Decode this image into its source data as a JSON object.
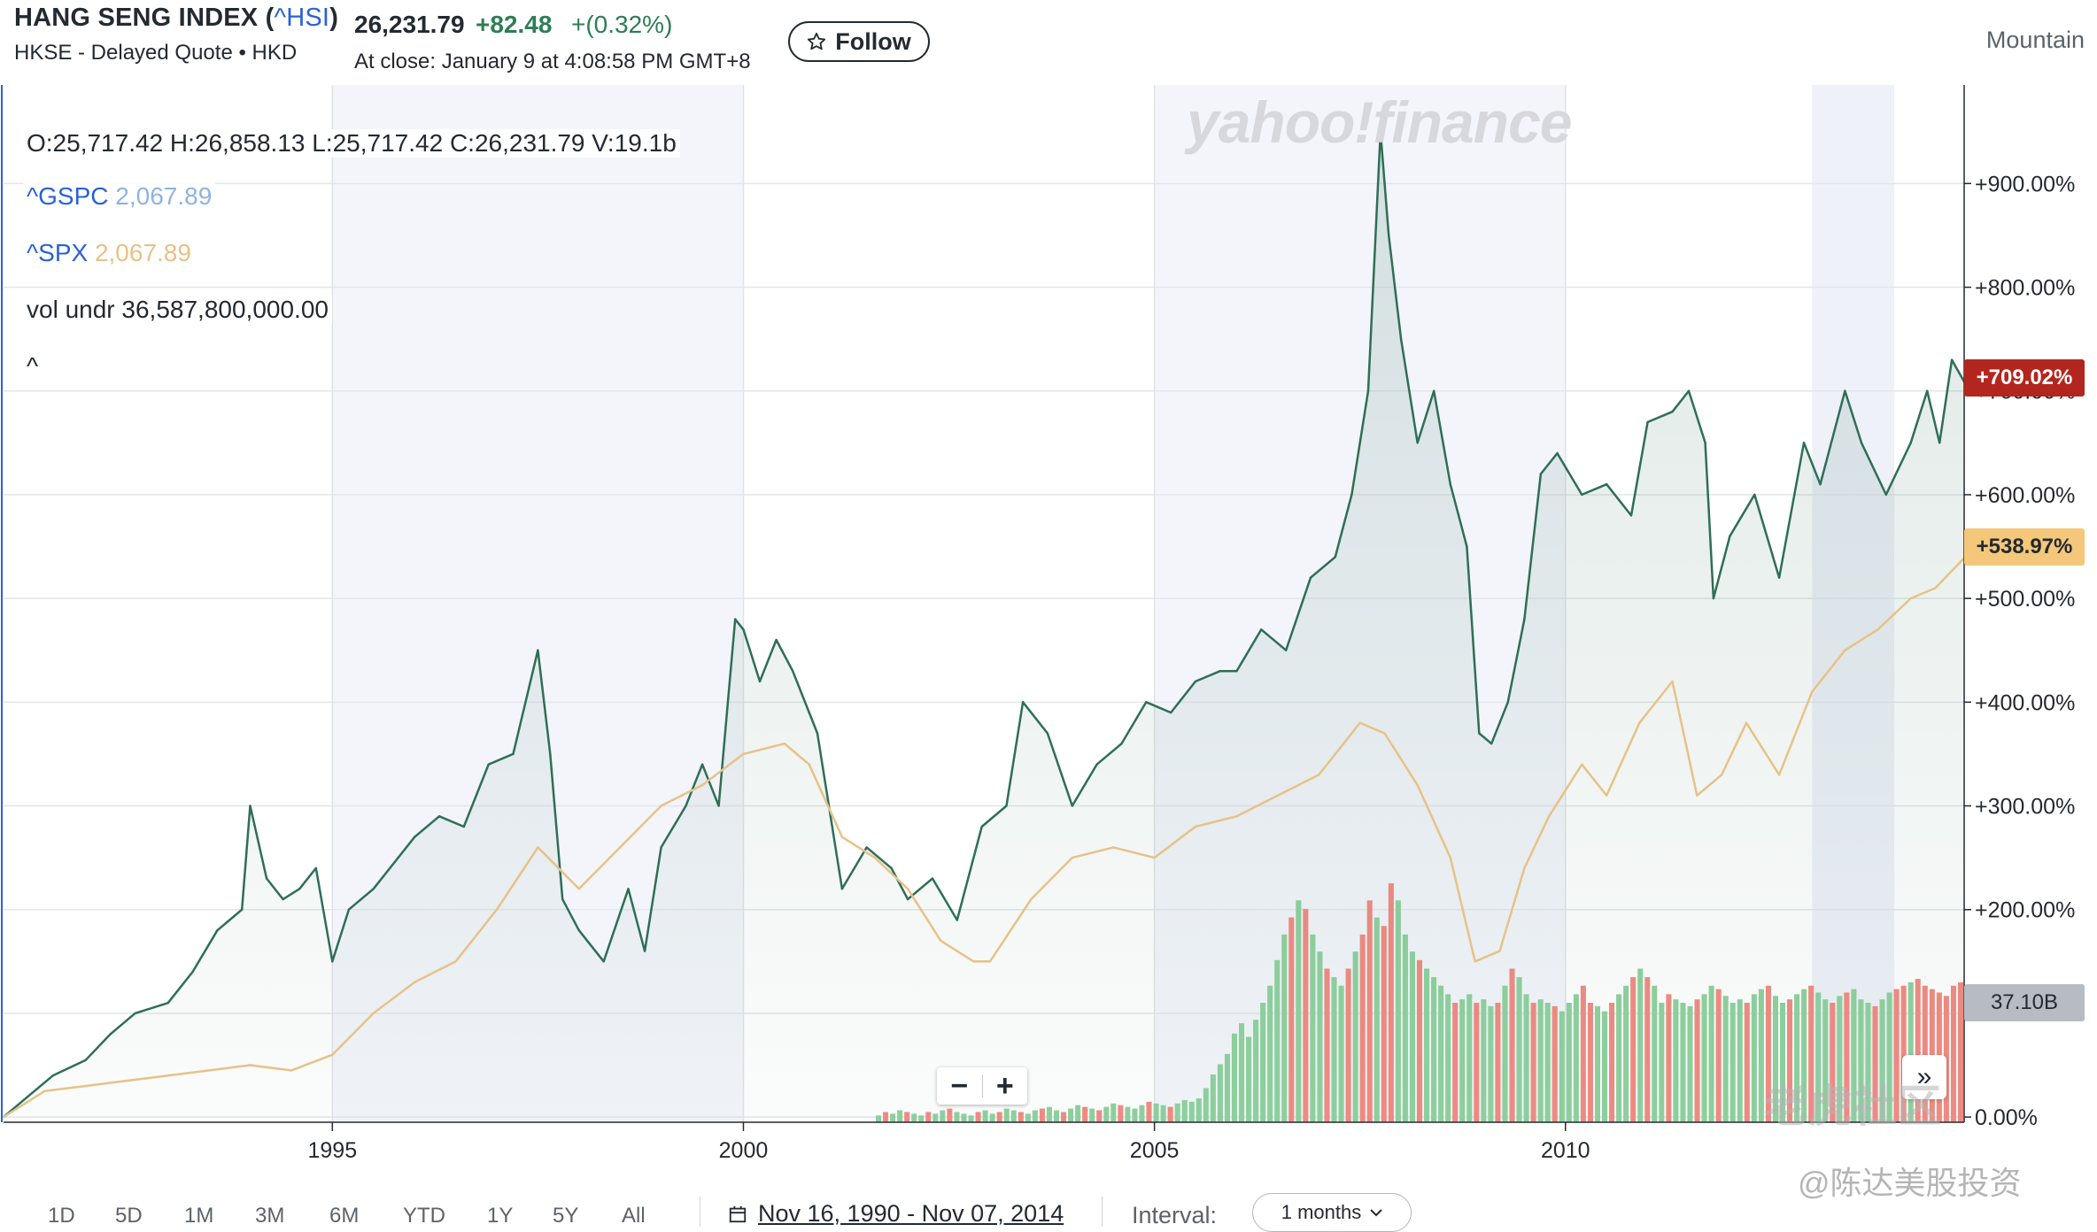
{
  "header": {
    "title": "HANG SENG INDEX (",
    "symbol": "^HSI",
    "title_end": ")",
    "exchange_line": "HKSE - Delayed Quote • HKD",
    "price": "26,231.79",
    "change": "+82.48",
    "change_pct": "+(0.32%)",
    "close_info": "At close: January 9 at 4:08:58 PM GMT+8",
    "follow_label": "Follow",
    "chart_style": "Mountain"
  },
  "ohlc": "O:25,717.42   H:26,858.13   L:25,717.42   C:26,231.79   V:19.1b",
  "legend": [
    {
      "name": "^GSPC",
      "value": "2,067.89"
    },
    {
      "name": "^SPX",
      "value": "2,067.89"
    }
  ],
  "vol_line": {
    "label": "vol undr",
    "value": "36,587,800,000.00"
  },
  "collapse_glyph": "^",
  "badges": {
    "hsi": "+709.02%",
    "spx": "+538.97%",
    "volume": "37.10B"
  },
  "watermarks": {
    "logo": "yahoo!finance",
    "community": "老虎社区",
    "author": "@陈达美股投资"
  },
  "zoom": {
    "minus": "−",
    "plus": "+"
  },
  "expand_glyph": "»",
  "toolbar": {
    "ranges": [
      "1D",
      "5D",
      "1M",
      "3M",
      "6M",
      "YTD",
      "1Y",
      "5Y",
      "All"
    ],
    "date_range": "Nov 16, 1990 - Nov 07, 2014",
    "interval_label": "Interval:",
    "interval_value": "1 months"
  },
  "colors": {
    "hsi": "#2f6e57",
    "spx": "#e7c287",
    "vol_up": "#8fd19e",
    "vol_down": "#f28b82",
    "badge_hsi": "#b3261e",
    "badge_spx": "#f5c77a",
    "badge_vol": "#b6bcc2",
    "band": "#f3f5fa"
  },
  "chart_data": {
    "type": "line",
    "ylabel": "",
    "y_axis_ticks": [
      "0.00%",
      "+100.00%",
      "+200.00%",
      "+300.00%",
      "+400.00%",
      "+500.00%",
      "+600.00%",
      "+700.00%",
      "+800.00%",
      "+900.00%"
    ],
    "ylim": [
      -5,
      995
    ],
    "x_axis_ticks": [
      "1995",
      "2000",
      "2005",
      "2010"
    ],
    "xlim": [
      1991.0,
      2014.85
    ],
    "series": [
      {
        "name": "^HSI",
        "style": "mountain",
        "x": [
          1991.0,
          1991.3,
          1991.6,
          1992.0,
          1992.3,
          1992.6,
          1993.0,
          1993.3,
          1993.6,
          1993.9,
          1994.0,
          1994.2,
          1994.4,
          1994.6,
          1994.8,
          1995.0,
          1995.2,
          1995.5,
          1995.8,
          1996.0,
          1996.3,
          1996.6,
          1996.9,
          1997.2,
          1997.5,
          1997.65,
          1997.8,
          1998.0,
          1998.3,
          1998.6,
          1998.8,
          1999.0,
          1999.3,
          1999.5,
          1999.7,
          1999.9,
          2000.0,
          2000.2,
          2000.4,
          2000.6,
          2000.9,
          2001.2,
          2001.5,
          2001.8,
          2002.0,
          2002.3,
          2002.6,
          2002.9,
          2003.2,
          2003.4,
          2003.7,
          2004.0,
          2004.3,
          2004.6,
          2004.9,
          2005.2,
          2005.5,
          2005.8,
          2006.0,
          2006.3,
          2006.6,
          2006.9,
          2007.2,
          2007.4,
          2007.6,
          2007.75,
          2007.85,
          2008.0,
          2008.2,
          2008.4,
          2008.6,
          2008.8,
          2008.95,
          2009.1,
          2009.3,
          2009.5,
          2009.7,
          2009.9,
          2010.2,
          2010.5,
          2010.8,
          2011.0,
          2011.3,
          2011.5,
          2011.7,
          2011.8,
          2012.0,
          2012.3,
          2012.6,
          2012.9,
          2013.1,
          2013.4,
          2013.6,
          2013.9,
          2014.2,
          2014.4,
          2014.55,
          2014.7,
          2014.85
        ],
        "values": [
          0,
          20,
          40,
          55,
          80,
          100,
          110,
          140,
          180,
          200,
          300,
          230,
          210,
          220,
          240,
          150,
          200,
          220,
          250,
          270,
          290,
          280,
          340,
          350,
          450,
          350,
          210,
          180,
          150,
          220,
          160,
          260,
          300,
          340,
          300,
          480,
          470,
          420,
          460,
          430,
          370,
          220,
          260,
          240,
          210,
          230,
          190,
          280,
          300,
          400,
          370,
          300,
          340,
          360,
          400,
          390,
          420,
          430,
          430,
          470,
          450,
          520,
          540,
          600,
          700,
          950,
          850,
          750,
          650,
          700,
          610,
          550,
          370,
          360,
          400,
          480,
          620,
          640,
          600,
          610,
          580,
          670,
          680,
          700,
          650,
          500,
          560,
          600,
          520,
          650,
          610,
          700,
          650,
          600,
          650,
          700,
          650,
          730,
          709.02
        ]
      },
      {
        "name": "^SPX",
        "style": "line",
        "x": [
          1991.0,
          1991.5,
          1992.0,
          1992.5,
          1993.0,
          1993.5,
          1994.0,
          1994.5,
          1995.0,
          1995.5,
          1996.0,
          1996.5,
          1997.0,
          1997.5,
          1998.0,
          1998.5,
          1999.0,
          1999.5,
          2000.0,
          2000.5,
          2000.8,
          2001.2,
          2001.6,
          2002.0,
          2002.4,
          2002.8,
          2003.0,
          2003.5,
          2004.0,
          2004.5,
          2005.0,
          2005.5,
          2006.0,
          2006.5,
          2007.0,
          2007.5,
          2007.8,
          2008.2,
          2008.6,
          2008.9,
          2009.2,
          2009.5,
          2009.8,
          2010.2,
          2010.5,
          2010.9,
          2011.3,
          2011.6,
          2011.9,
          2012.2,
          2012.6,
          2013.0,
          2013.4,
          2013.8,
          2014.2,
          2014.5,
          2014.85
        ],
        "values": [
          0,
          25,
          30,
          35,
          40,
          45,
          50,
          45,
          60,
          100,
          130,
          150,
          200,
          260,
          220,
          260,
          300,
          320,
          350,
          360,
          340,
          270,
          250,
          220,
          170,
          150,
          150,
          210,
          250,
          260,
          250,
          280,
          290,
          310,
          330,
          380,
          370,
          320,
          250,
          150,
          160,
          240,
          290,
          340,
          310,
          380,
          420,
          310,
          330,
          380,
          330,
          410,
          450,
          470,
          500,
          510,
          538.97
        ]
      }
    ],
    "volume": {
      "label": "Volume",
      "latest": "37.10B",
      "x_start": 2001.6,
      "x_end": 2014.85,
      "values": [
        4,
        6,
        5,
        7,
        6,
        5,
        4,
        6,
        5,
        7,
        8,
        6,
        5,
        4,
        6,
        7,
        5,
        6,
        8,
        7,
        6,
        5,
        7,
        8,
        9,
        7,
        6,
        8,
        10,
        9,
        8,
        7,
        9,
        11,
        10,
        9,
        8,
        10,
        12,
        11,
        10,
        9,
        11,
        13,
        12,
        14,
        20,
        28,
        34,
        40,
        52,
        58,
        50,
        60,
        70,
        80,
        95,
        110,
        120,
        130,
        125,
        110,
        100,
        90,
        85,
        80,
        90,
        100,
        110,
        130,
        120,
        115,
        140,
        130,
        110,
        100,
        95,
        90,
        85,
        80,
        75,
        70,
        72,
        75,
        70,
        72,
        68,
        70,
        80,
        90,
        85,
        75,
        70,
        72,
        70,
        68,
        65,
        70,
        75,
        80,
        70,
        68,
        65,
        70,
        75,
        80,
        85,
        90,
        85,
        80,
        70,
        75,
        72,
        70,
        68,
        72,
        75,
        80,
        78,
        74,
        70,
        72,
        70,
        75,
        78,
        80,
        74,
        70,
        72,
        75,
        78,
        80,
        76,
        72,
        70,
        74,
        76,
        78,
        72,
        70,
        68,
        72,
        76,
        78,
        80,
        82,
        84,
        80,
        78,
        76,
        74,
        80,
        82
      ],
      "up": [
        1,
        0,
        1,
        1,
        0,
        1,
        1,
        0,
        1,
        1,
        0,
        1,
        1,
        1,
        0,
        1,
        1,
        0,
        1,
        1,
        0,
        1,
        1,
        0,
        1,
        1,
        0,
        1,
        1,
        0,
        1,
        0,
        1,
        1,
        0,
        1,
        1,
        1,
        0,
        1,
        1,
        0,
        1,
        1,
        1,
        1,
        1,
        1,
        1,
        1,
        1,
        1,
        1,
        1,
        1,
        1,
        1,
        1,
        0,
        1,
        0,
        1,
        1,
        0,
        1,
        1,
        0,
        1,
        0,
        0,
        1,
        0,
        0,
        1,
        1,
        1,
        0,
        1,
        1,
        1,
        1,
        0,
        1,
        1,
        0,
        1,
        1,
        0,
        1,
        0,
        1,
        1,
        0,
        1,
        1,
        0,
        1,
        1,
        1,
        0,
        0,
        1,
        1,
        0,
        1,
        1,
        0,
        1,
        0,
        1,
        1,
        0,
        1,
        1,
        1,
        0,
        1,
        1,
        0,
        1,
        1,
        1,
        0,
        1,
        1,
        0,
        1,
        1,
        0,
        1,
        1,
        0,
        1,
        1,
        0,
        1,
        0,
        1,
        1,
        1,
        0,
        1,
        1,
        0,
        0,
        1,
        0
      ]
    }
  }
}
